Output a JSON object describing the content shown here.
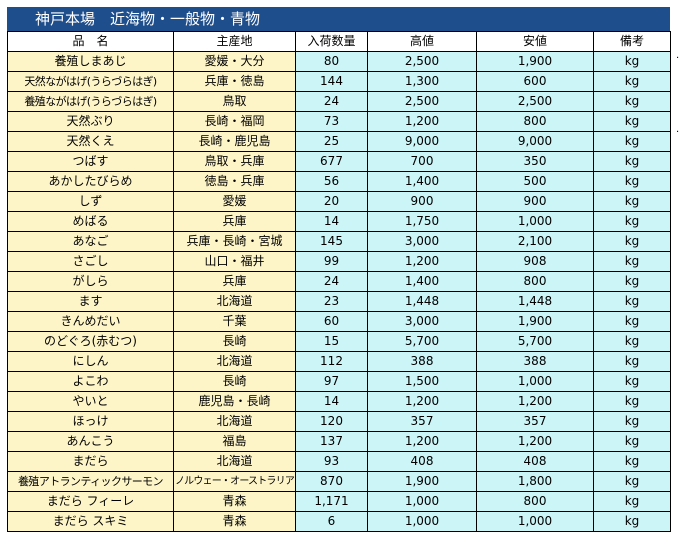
{
  "title": "神戸本場　近海物・一般物・青物",
  "headers": [
    "品　名",
    "主産地",
    "入荷数量",
    "高値",
    "安値",
    "備考"
  ],
  "rows": [
    {
      "name": "養殖しまあじ",
      "origin": "愛媛・大分",
      "qty": "80",
      "high": "2,500",
      "low": "1,900",
      "unit": "kg"
    },
    {
      "name": "天然ながはげ(うらづらはぎ)",
      "origin": "兵庫・徳島",
      "qty": "144",
      "high": "1,300",
      "low": "600",
      "unit": "kg"
    },
    {
      "name": "養殖ながはげ(うらづらはぎ)",
      "origin": "鳥取",
      "qty": "24",
      "high": "2,500",
      "low": "2,500",
      "unit": "kg"
    },
    {
      "name": "天然ぶり",
      "origin": "長崎・福岡",
      "qty": "73",
      "high": "1,200",
      "low": "800",
      "unit": "kg"
    },
    {
      "name": "天然くえ",
      "origin": "長崎・鹿児島",
      "qty": "25",
      "high": "9,000",
      "low": "9,000",
      "unit": "kg"
    },
    {
      "name": "つばす",
      "origin": "鳥取・兵庫",
      "qty": "677",
      "high": "700",
      "low": "350",
      "unit": "kg"
    },
    {
      "name": "あかしたびらめ",
      "origin": "徳島・兵庫",
      "qty": "56",
      "high": "1,400",
      "low": "500",
      "unit": "kg"
    },
    {
      "name": "しず",
      "origin": "愛媛",
      "qty": "20",
      "high": "900",
      "low": "900",
      "unit": "kg"
    },
    {
      "name": "めばる",
      "origin": "兵庫",
      "qty": "14",
      "high": "1,750",
      "low": "1,000",
      "unit": "kg"
    },
    {
      "name": "あなご",
      "origin": "兵庫・長崎・宮城",
      "qty": "145",
      "high": "3,000",
      "low": "2,100",
      "unit": "kg"
    },
    {
      "name": "さごし",
      "origin": "山口・福井",
      "qty": "99",
      "high": "1,200",
      "low": "908",
      "unit": "kg"
    },
    {
      "name": "がしら",
      "origin": "兵庫",
      "qty": "24",
      "high": "1,400",
      "low": "800",
      "unit": "kg"
    },
    {
      "name": "ます",
      "origin": "北海道",
      "qty": "23",
      "high": "1,448",
      "low": "1,448",
      "unit": "kg"
    },
    {
      "name": "きんめだい",
      "origin": "千葉",
      "qty": "60",
      "high": "3,000",
      "low": "1,900",
      "unit": "kg"
    },
    {
      "name": "のどぐろ(赤むつ)",
      "origin": "長崎",
      "qty": "15",
      "high": "5,700",
      "low": "5,700",
      "unit": "kg"
    },
    {
      "name": "にしん",
      "origin": "北海道",
      "qty": "112",
      "high": "388",
      "low": "388",
      "unit": "kg"
    },
    {
      "name": "よこわ",
      "origin": "長崎",
      "qty": "97",
      "high": "1,500",
      "low": "1,000",
      "unit": "kg"
    },
    {
      "name": "やいと",
      "origin": "鹿児島・長崎",
      "qty": "14",
      "high": "1,200",
      "low": "1,200",
      "unit": "kg"
    },
    {
      "name": "ほっけ",
      "origin": "北海道",
      "qty": "120",
      "high": "357",
      "low": "357",
      "unit": "kg"
    },
    {
      "name": "あんこう",
      "origin": "福島",
      "qty": "137",
      "high": "1,200",
      "low": "1,200",
      "unit": "kg"
    },
    {
      "name": "まだら",
      "origin": "北海道",
      "qty": "93",
      "high": "408",
      "low": "408",
      "unit": "kg"
    },
    {
      "name": "養殖アトランティックサーモン",
      "origin": "ノルウェー・オーストラリア",
      "qty": "870",
      "high": "1,900",
      "low": "1,800",
      "unit": "kg"
    },
    {
      "name": "まだら フィーレ",
      "origin": "青森",
      "qty": "1,171",
      "high": "1,000",
      "low": "800",
      "unit": "kg"
    },
    {
      "name": "まだら スキミ",
      "origin": "青森",
      "qty": "6",
      "high": "1,000",
      "low": "1,000",
      "unit": "kg"
    }
  ]
}
